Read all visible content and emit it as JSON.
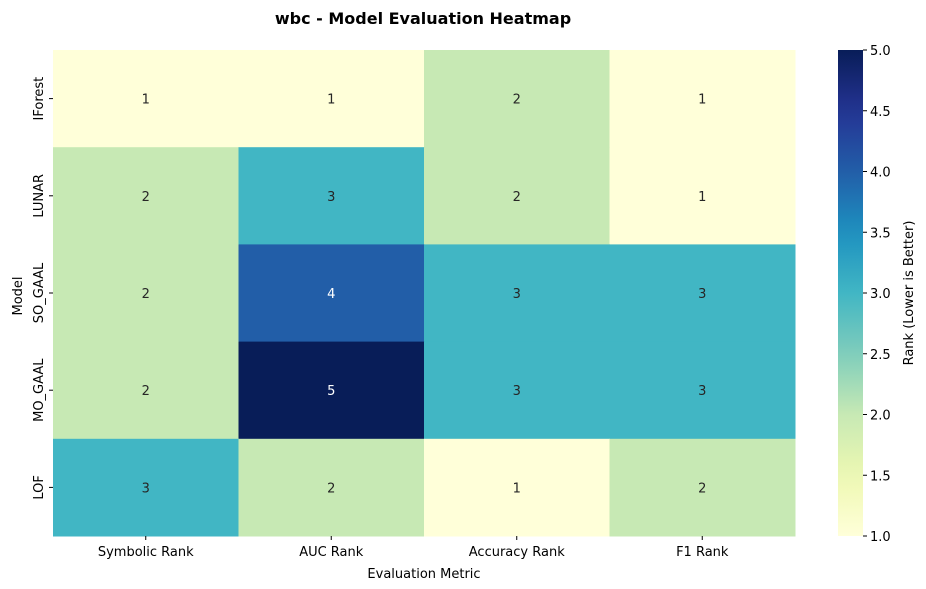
{
  "chart_data": {
    "type": "heatmap",
    "title": "wbc - Model Evaluation Heatmap",
    "xlabel": "Evaluation Metric",
    "ylabel": "Model",
    "x_categories": [
      "Symbolic Rank",
      "AUC Rank",
      "Accuracy Rank",
      "F1 Rank"
    ],
    "y_categories": [
      "IForest",
      "LUNAR",
      "SO_GAAL",
      "MO_GAAL",
      "LOF"
    ],
    "values": [
      [
        1,
        1,
        2,
        1
      ],
      [
        2,
        3,
        2,
        1
      ],
      [
        2,
        4,
        3,
        3
      ],
      [
        2,
        5,
        3,
        3
      ],
      [
        3,
        2,
        1,
        2
      ]
    ],
    "colormap": "YlGnBu",
    "colorbar": {
      "label": "Rank (Lower is Better)",
      "range": [
        1.0,
        5.0
      ],
      "ticks": [
        "1.0",
        "1.5",
        "2.0",
        "2.5",
        "3.0",
        "3.5",
        "4.0",
        "4.5",
        "5.0"
      ]
    },
    "annotations": true
  }
}
